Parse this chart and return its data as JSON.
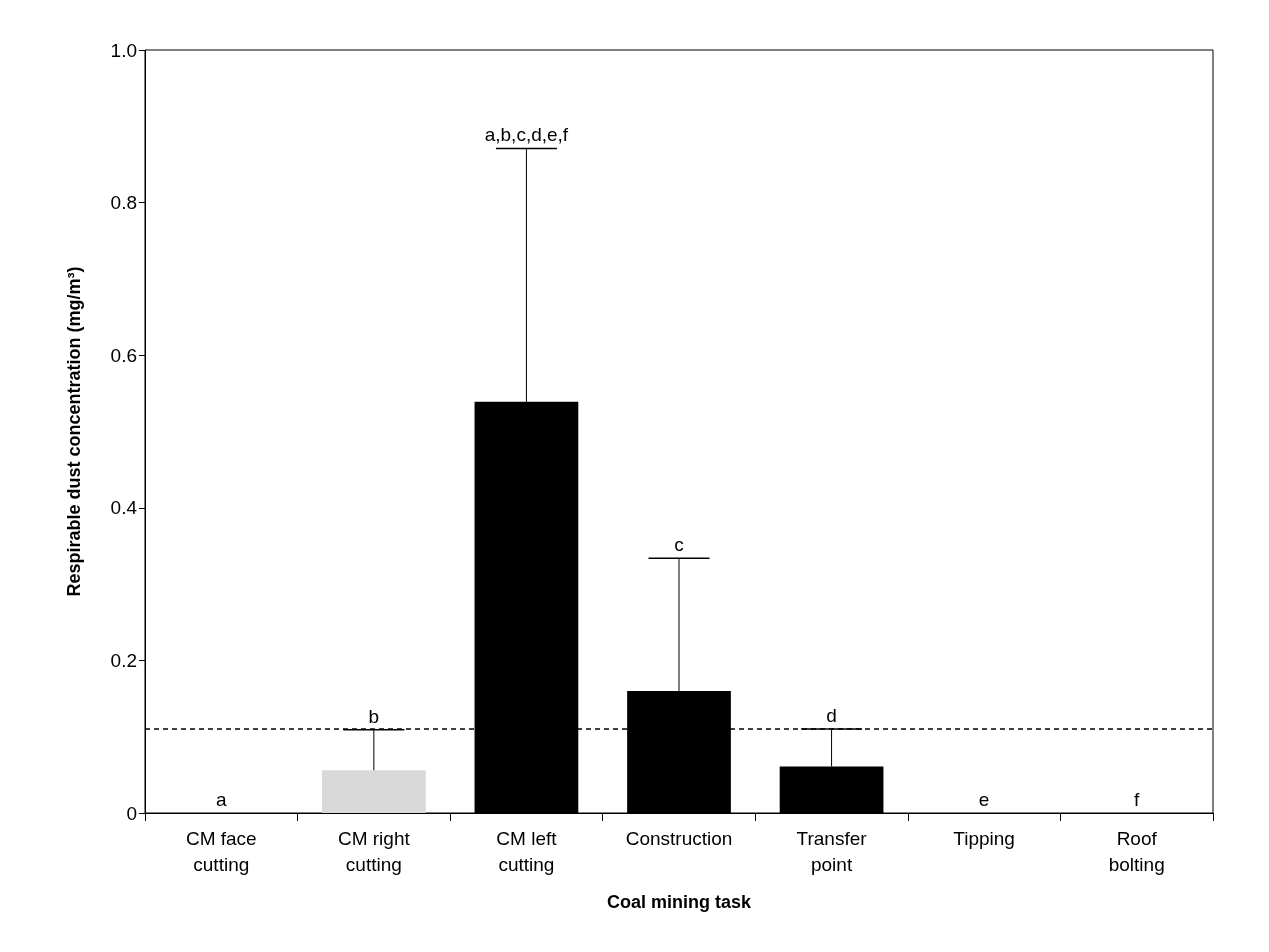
{
  "chart_data": {
    "type": "bar",
    "xlabel": "Coal mining task",
    "ylabel": "Respirable dust concentration (mg/m³)",
    "categories": [
      "CM face\ncutting",
      "CM right\ncutting",
      "CM left\ncutting",
      "Construction",
      "Transfer\npoint",
      "Tipping",
      "Roof\nbolting"
    ],
    "values": [
      0,
      0.056,
      0.539,
      0.16,
      0.061,
      0,
      0
    ],
    "colors": [
      "#000000",
      "#d9d9d9",
      "#000000",
      "#000000",
      "#000000",
      "#000000",
      "#000000"
    ],
    "errors": [
      null,
      [
        0.056,
        0.109
      ],
      [
        0.539,
        0.871
      ],
      [
        0.16,
        0.334
      ],
      [
        0.061,
        0.11
      ],
      null,
      null
    ],
    "ylim": [
      0,
      1
    ],
    "yticks": [
      0,
      0.2,
      0.4,
      0.6,
      0.8,
      {
        "value": 1,
        "label": "1.0"
      }
    ],
    "ref_lines": [
      {
        "axis": "y",
        "value": 0.109,
        "line_style": "dashed",
        "color": "#000000"
      }
    ],
    "annotations": [
      {
        "text": "a",
        "x": "CM face\ncutting",
        "y": 0
      },
      {
        "text": "b",
        "x": "CM right\ncutting",
        "y": 0.109
      },
      {
        "text": "a,b,c,d,e,f",
        "x": "CM left\ncutting",
        "y": 0.871
      },
      {
        "text": "c",
        "x": "Construction",
        "y": 0.334
      },
      {
        "text": "d",
        "x": "Transfer\npoint",
        "y": 0.11
      },
      {
        "text": "e",
        "x": "Tipping",
        "y": 0
      },
      {
        "text": "f",
        "x": "Roof\nbolting",
        "y": 0
      }
    ],
    "grid": false
  }
}
